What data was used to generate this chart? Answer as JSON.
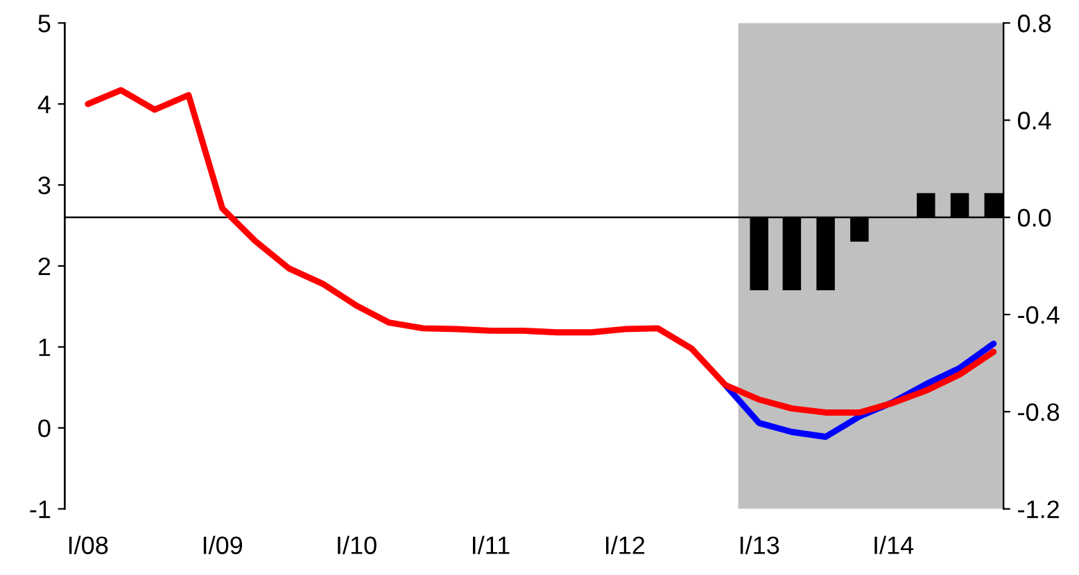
{
  "chart_data": {
    "type": "line",
    "x": [
      "2008-02-15",
      "2008-05-15",
      "2008-08-15",
      "2008-11-15",
      "2009-02-15",
      "2009-05-15",
      "2009-08-15",
      "2009-11-15",
      "2010-02-15",
      "2010-05-15",
      "2010-08-15",
      "2010-11-15",
      "2011-02-15",
      "2011-05-15",
      "2011-08-15",
      "2011-11-15",
      "2012-02-15",
      "2012-05-15",
      "2012-08-15",
      "2012-11-15",
      "2013-02-15",
      "2013-05-15",
      "2013-08-15",
      "2013-11-15",
      "2014-02-15",
      "2014-05-15",
      "2014-08-15",
      "2014-11-15"
    ],
    "series": [
      {
        "type": "bar",
        "axis": "y2",
        "color": "#000000",
        "values": [
          null,
          null,
          null,
          null,
          null,
          null,
          null,
          null,
          null,
          null,
          null,
          null,
          null,
          null,
          null,
          null,
          null,
          null,
          null,
          null,
          -0.3,
          -0.3,
          -0.3,
          -0.1,
          null,
          0.1,
          0.1,
          0.1
        ]
      },
      {
        "color": "#0000ff",
        "values": [
          null,
          null,
          null,
          null,
          null,
          null,
          null,
          null,
          null,
          null,
          null,
          null,
          null,
          null,
          null,
          null,
          null,
          null,
          null,
          0.53,
          0.06,
          -0.05,
          -0.11,
          0.14,
          0.32,
          0.54,
          0.74,
          1.04
        ]
      },
      {
        "color": "#ff0000",
        "values": [
          4.0,
          4.17,
          3.93,
          4.11,
          2.71,
          2.31,
          1.97,
          1.78,
          1.51,
          1.3,
          1.23,
          1.22,
          1.2,
          1.2,
          1.18,
          1.18,
          1.22,
          1.23,
          0.98,
          0.53,
          0.35,
          0.24,
          0.19,
          0.19,
          0.31,
          0.46,
          0.66,
          0.94
        ]
      }
    ],
    "xlim": [
      "2007-12-14",
      "2014-12-12"
    ],
    "xticks": [
      {
        "value": "2008-02-15",
        "label": "I/08"
      },
      {
        "value": "2009-02-15",
        "label": "I/09"
      },
      {
        "value": "2010-02-15",
        "label": "I/10"
      },
      {
        "value": "2011-02-15",
        "label": "I/11"
      },
      {
        "value": "2012-02-15",
        "label": "I/12"
      },
      {
        "value": "2013-02-15",
        "label": "I/13"
      },
      {
        "value": "2014-02-15",
        "label": "I/14"
      }
    ],
    "ylim": [
      -1,
      5
    ],
    "yticks": [
      -1,
      0,
      1,
      2,
      3,
      4,
      5
    ],
    "y2lim": [
      -1.2,
      0.8
    ],
    "y2ticks": [
      {
        "value": -1.2,
        "label": "-1.2"
      },
      {
        "value": -0.8,
        "label": "-0.8"
      },
      {
        "value": -0.4,
        "label": "-0.4"
      },
      {
        "value": 0.0,
        "label": "0.0"
      },
      {
        "value": 0.4,
        "label": "0.4"
      },
      {
        "value": 0.8,
        "label": "0.8"
      }
    ],
    "ref_lines": [
      {
        "axis": "y2",
        "value": 0.0,
        "color": "#000000",
        "line_style": "solid"
      }
    ],
    "bands": [
      {
        "axis": "x",
        "from": "2012-12-20",
        "to": "2014-12-12",
        "color": "#c0c0c0"
      }
    ],
    "grid": false,
    "legend": false
  }
}
